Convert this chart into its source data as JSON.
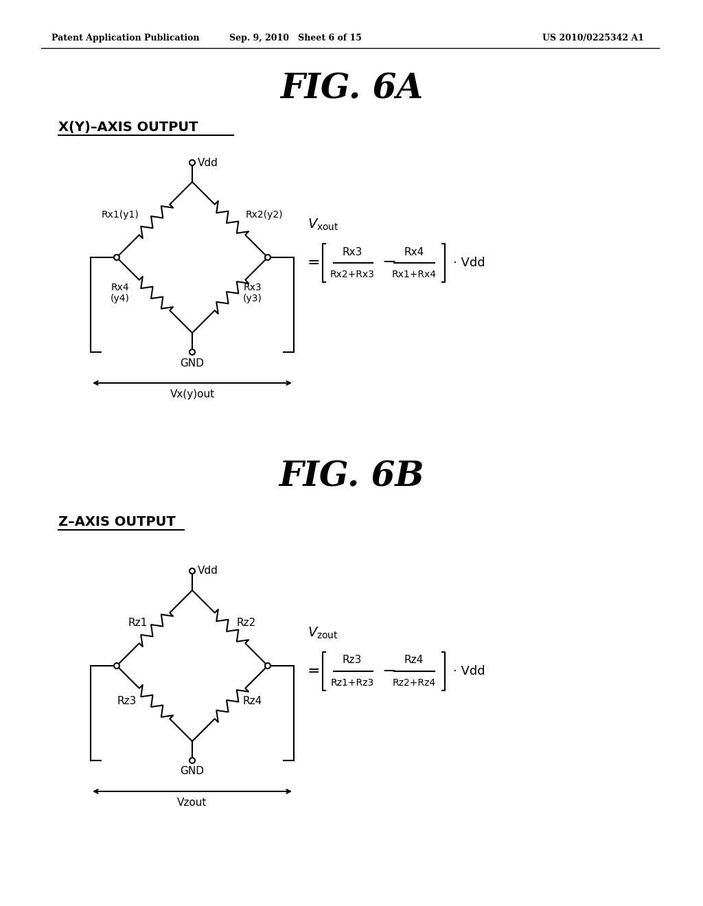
{
  "header_left": "Patent Application Publication",
  "header_mid": "Sep. 9, 2010   Sheet 6 of 15",
  "header_right": "US 2010/0225342 A1",
  "fig_6a_title": "FIG. 6A",
  "fig_6b_title": "FIG. 6B",
  "label_6a": "X(Y)–AXIS OUTPUT",
  "label_6b": "Z–AXIS OUTPUT",
  "bg_color": "#ffffff",
  "line_color": "#000000"
}
